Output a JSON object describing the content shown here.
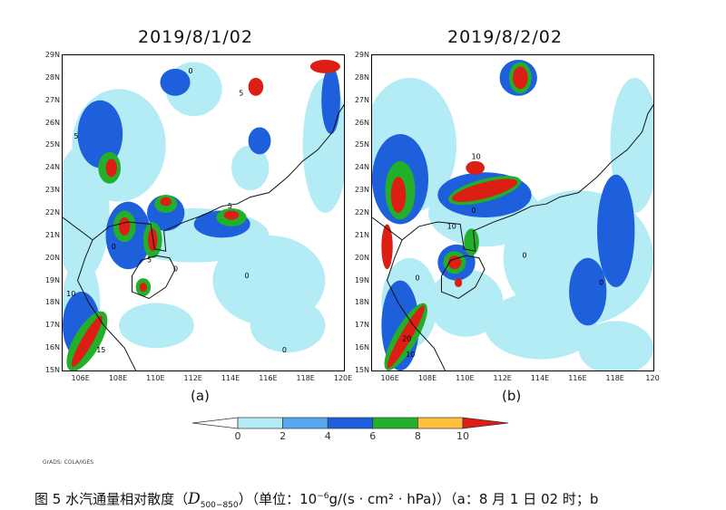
{
  "panels": [
    {
      "title": "2019/8/1/02",
      "label": "(a)",
      "lon_labels": [
        "106E",
        "108E",
        "110E",
        "112E",
        "114E",
        "116E",
        "118E",
        "120E"
      ]
    },
    {
      "title": "2019/8/2/02",
      "label": "(b)",
      "lon_labels": [
        "106E",
        "108E",
        "110E",
        "112E",
        "114E",
        "116E",
        "118E",
        "120"
      ]
    }
  ],
  "lat_labels": [
    "29N",
    "28N",
    "27N",
    "26N",
    "25N",
    "24N",
    "23N",
    "22N",
    "21N",
    "20N",
    "19N",
    "18N",
    "17N",
    "16N",
    "15N"
  ],
  "contour_labels": {
    "a": [
      "0",
      "5",
      "5",
      "0",
      "5",
      "0",
      "5",
      "0",
      "10",
      "15",
      "0"
    ],
    "b": [
      "10",
      "0",
      "10",
      "0",
      "20",
      "10",
      "0",
      "0"
    ]
  },
  "colorbar": {
    "levels": [
      "0",
      "2",
      "4",
      "6",
      "8",
      "10"
    ],
    "colors": [
      "#ffffff",
      "#b4ecf6",
      "#55a8f0",
      "#1e5fdc",
      "#22b02a",
      "#ffbe3c",
      "#dc1e14"
    ]
  },
  "credit": "GrADS: COLA/IGES",
  "caption": {
    "prefix": "图 5 水汽通量相对散度（",
    "symbol": "D",
    "subscript": "500−850",
    "mid": "）（单位：10",
    "sup": "−6",
    "unit": "g/(s · cm² · hPa)）（a：8 月 1 日 02 时；b"
  }
}
